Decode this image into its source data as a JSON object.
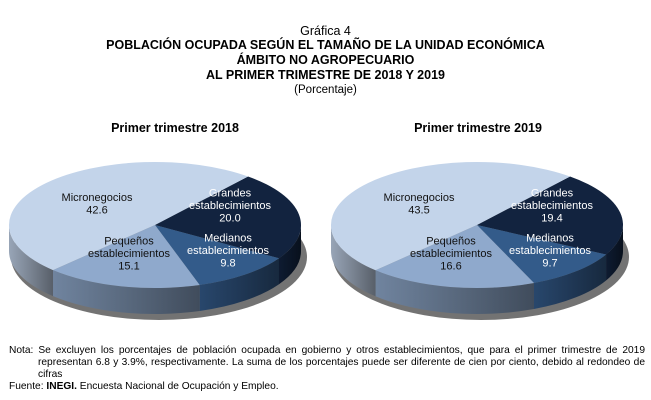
{
  "header": {
    "figure_number": "Gráfica 4",
    "title_line1": "POBLACIÓN OCUPADA SEGÚN EL TAMAÑO DE LA UNIDAD ECONÓMICA",
    "title_line2": "ÁMBITO NO AGROPECUARIO",
    "title_line3": "AL PRIMER TRIMESTRE DE 2018 Y 2019",
    "unit": "(Porcentaje)"
  },
  "chart_data": [
    {
      "type": "pie",
      "title": "Primer trimestre  2018",
      "slices": [
        {
          "label_lines": [
            "Grandes",
            "establecimientos"
          ],
          "value": 20.0,
          "value_text": "20.0",
          "color": "#12233f",
          "text_color": "#ffffff"
        },
        {
          "label_lines": [
            "Medianos",
            "establecimientos"
          ],
          "value": 9.8,
          "value_text": "9.8",
          "color": "#335b8a",
          "text_color": "#ffffff"
        },
        {
          "label_lines": [
            "Pequeños",
            "establecimientos"
          ],
          "value": 15.1,
          "value_text": "15.1",
          "color": "#8fa9cc",
          "text_color": "#111111"
        },
        {
          "label_lines": [
            "Micronegocios"
          ],
          "value": 42.6,
          "value_text": "42.6",
          "color": "#c3d4ea",
          "text_color": "#111111"
        }
      ]
    },
    {
      "type": "pie",
      "title": "Primer trimestre  2019",
      "slices": [
        {
          "label_lines": [
            "Grandes",
            "establecimientos"
          ],
          "value": 19.4,
          "value_text": "19.4",
          "color": "#12233f",
          "text_color": "#ffffff"
        },
        {
          "label_lines": [
            "Medianos",
            "establecimientos"
          ],
          "value": 9.7,
          "value_text": "9.7",
          "color": "#335b8a",
          "text_color": "#ffffff"
        },
        {
          "label_lines": [
            "Pequeños",
            "establecimientos"
          ],
          "value": 16.6,
          "value_text": "16.6",
          "color": "#8fa9cc",
          "text_color": "#111111"
        },
        {
          "label_lines": [
            "Micronegocios"
          ],
          "value": 43.5,
          "value_text": "43.5",
          "color": "#c3d4ea",
          "text_color": "#111111"
        }
      ]
    }
  ],
  "footer": {
    "note_prefix": "Nota: ",
    "note_text": "Se excluyen los porcentajes de población ocupada en gobierno y otros establecimientos, que para el primer trimestre de 2019 representan 6.8 y 3.9%, respectivamente. La suma de los porcentajes puede ser diferente de cien por ciento, debido al redondeo de cifras",
    "source_prefix": "Fuente: ",
    "source_org": "INEGI.",
    "source_text": " Encuesta Nacional de Ocupación y Empleo."
  }
}
